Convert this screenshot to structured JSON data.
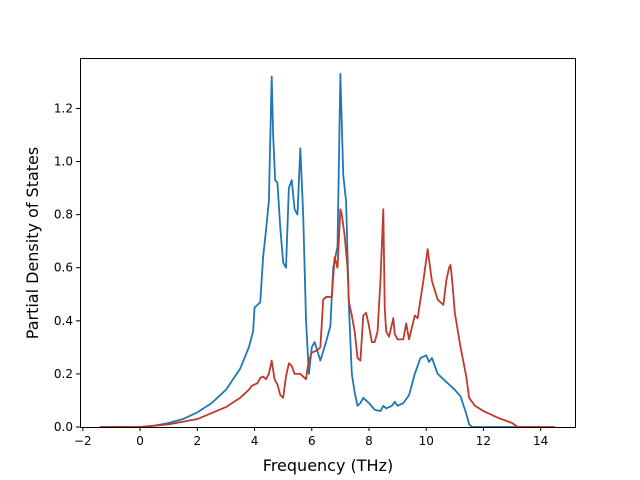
{
  "chart_data": {
    "type": "line",
    "title": "",
    "xlabel": "Frequency (THz)",
    "ylabel": "Partial Density of States",
    "xlim": [
      -2.1,
      15.2
    ],
    "ylim": [
      0.0,
      1.39
    ],
    "grid": false,
    "xticks": [
      -2,
      0,
      2,
      4,
      6,
      8,
      10,
      12,
      14
    ],
    "xtick_labels": [
      "−2",
      "0",
      "2",
      "4",
      "6",
      "8",
      "10",
      "12",
      "14"
    ],
    "yticks": [
      0.0,
      0.2,
      0.4,
      0.6,
      0.8,
      1.0,
      1.2
    ],
    "ytick_labels": [
      "0.0",
      "0.2",
      "0.4",
      "0.6",
      "0.8",
      "1.0",
      "1.2"
    ],
    "series": [
      {
        "color": "#1f77b4",
        "points": [
          [
            -1.4,
            0.0
          ],
          [
            0.0,
            0.0
          ],
          [
            0.5,
            0.005
          ],
          [
            1.0,
            0.015
          ],
          [
            1.5,
            0.03
          ],
          [
            2.0,
            0.055
          ],
          [
            2.5,
            0.09
          ],
          [
            3.0,
            0.14
          ],
          [
            3.5,
            0.22
          ],
          [
            3.8,
            0.3
          ],
          [
            3.95,
            0.36
          ],
          [
            4.0,
            0.45
          ],
          [
            4.2,
            0.47
          ],
          [
            4.3,
            0.64
          ],
          [
            4.4,
            0.74
          ],
          [
            4.5,
            0.85
          ],
          [
            4.6,
            1.32
          ],
          [
            4.65,
            1.1
          ],
          [
            4.72,
            0.93
          ],
          [
            4.8,
            0.92
          ],
          [
            4.9,
            0.75
          ],
          [
            5.0,
            0.62
          ],
          [
            5.1,
            0.6
          ],
          [
            5.2,
            0.9
          ],
          [
            5.3,
            0.93
          ],
          [
            5.4,
            0.82
          ],
          [
            5.5,
            0.8
          ],
          [
            5.6,
            1.05
          ],
          [
            5.7,
            0.8
          ],
          [
            5.8,
            0.4
          ],
          [
            5.9,
            0.2
          ],
          [
            6.0,
            0.3
          ],
          [
            6.1,
            0.32
          ],
          [
            6.3,
            0.25
          ],
          [
            6.5,
            0.32
          ],
          [
            6.65,
            0.38
          ],
          [
            6.75,
            0.6
          ],
          [
            6.9,
            0.68
          ],
          [
            7.0,
            1.33
          ],
          [
            7.1,
            0.95
          ],
          [
            7.2,
            0.85
          ],
          [
            7.3,
            0.45
          ],
          [
            7.4,
            0.2
          ],
          [
            7.5,
            0.13
          ],
          [
            7.6,
            0.08
          ],
          [
            7.7,
            0.09
          ],
          [
            7.8,
            0.11
          ],
          [
            8.0,
            0.09
          ],
          [
            8.2,
            0.065
          ],
          [
            8.4,
            0.06
          ],
          [
            8.5,
            0.08
          ],
          [
            8.6,
            0.07
          ],
          [
            8.8,
            0.08
          ],
          [
            8.9,
            0.095
          ],
          [
            9.0,
            0.08
          ],
          [
            9.2,
            0.09
          ],
          [
            9.4,
            0.12
          ],
          [
            9.6,
            0.2
          ],
          [
            9.8,
            0.26
          ],
          [
            9.9,
            0.265
          ],
          [
            10.0,
            0.27
          ],
          [
            10.1,
            0.245
          ],
          [
            10.2,
            0.26
          ],
          [
            10.4,
            0.2
          ],
          [
            10.6,
            0.18
          ],
          [
            11.0,
            0.14
          ],
          [
            11.2,
            0.115
          ],
          [
            11.4,
            0.05
          ],
          [
            11.5,
            0.01
          ],
          [
            11.6,
            0.0
          ],
          [
            14.0,
            0.0
          ]
        ]
      },
      {
        "color": "#c0392b",
        "points": [
          [
            -1.4,
            0.0
          ],
          [
            0.0,
            0.0
          ],
          [
            1.0,
            0.01
          ],
          [
            2.0,
            0.03
          ],
          [
            3.0,
            0.075
          ],
          [
            3.5,
            0.11
          ],
          [
            3.8,
            0.14
          ],
          [
            3.9,
            0.155
          ],
          [
            4.0,
            0.16
          ],
          [
            4.1,
            0.165
          ],
          [
            4.2,
            0.185
          ],
          [
            4.3,
            0.19
          ],
          [
            4.4,
            0.18
          ],
          [
            4.5,
            0.2
          ],
          [
            4.6,
            0.25
          ],
          [
            4.7,
            0.18
          ],
          [
            4.8,
            0.16
          ],
          [
            4.9,
            0.12
          ],
          [
            5.0,
            0.11
          ],
          [
            5.1,
            0.19
          ],
          [
            5.2,
            0.24
          ],
          [
            5.3,
            0.23
          ],
          [
            5.4,
            0.2
          ],
          [
            5.6,
            0.2
          ],
          [
            5.7,
            0.19
          ],
          [
            5.8,
            0.18
          ],
          [
            5.85,
            0.22
          ],
          [
            5.9,
            0.25
          ],
          [
            6.0,
            0.28
          ],
          [
            6.2,
            0.29
          ],
          [
            6.3,
            0.3
          ],
          [
            6.4,
            0.48
          ],
          [
            6.5,
            0.49
          ],
          [
            6.7,
            0.49
          ],
          [
            6.8,
            0.64
          ],
          [
            6.9,
            0.6
          ],
          [
            7.0,
            0.82
          ],
          [
            7.05,
            0.8
          ],
          [
            7.15,
            0.72
          ],
          [
            7.25,
            0.6
          ],
          [
            7.3,
            0.47
          ],
          [
            7.4,
            0.42
          ],
          [
            7.5,
            0.36
          ],
          [
            7.6,
            0.26
          ],
          [
            7.7,
            0.25
          ],
          [
            7.8,
            0.42
          ],
          [
            7.9,
            0.43
          ],
          [
            8.0,
            0.38
          ],
          [
            8.1,
            0.32
          ],
          [
            8.2,
            0.32
          ],
          [
            8.3,
            0.36
          ],
          [
            8.4,
            0.55
          ],
          [
            8.5,
            0.82
          ],
          [
            8.55,
            0.45
          ],
          [
            8.6,
            0.36
          ],
          [
            8.7,
            0.34
          ],
          [
            8.85,
            0.41
          ],
          [
            8.9,
            0.35
          ],
          [
            9.0,
            0.33
          ],
          [
            9.2,
            0.33
          ],
          [
            9.3,
            0.39
          ],
          [
            9.4,
            0.33
          ],
          [
            9.6,
            0.42
          ],
          [
            9.7,
            0.41
          ],
          [
            9.9,
            0.55
          ],
          [
            10.0,
            0.63
          ],
          [
            10.05,
            0.67
          ],
          [
            10.2,
            0.55
          ],
          [
            10.4,
            0.48
          ],
          [
            10.6,
            0.46
          ],
          [
            10.7,
            0.55
          ],
          [
            10.8,
            0.6
          ],
          [
            10.85,
            0.61
          ],
          [
            10.9,
            0.56
          ],
          [
            11.0,
            0.43
          ],
          [
            11.2,
            0.3
          ],
          [
            11.4,
            0.19
          ],
          [
            11.5,
            0.11
          ],
          [
            11.7,
            0.08
          ],
          [
            12.0,
            0.06
          ],
          [
            12.5,
            0.035
          ],
          [
            13.0,
            0.015
          ],
          [
            13.2,
            0.0
          ],
          [
            14.5,
            0.0
          ]
        ]
      }
    ]
  }
}
